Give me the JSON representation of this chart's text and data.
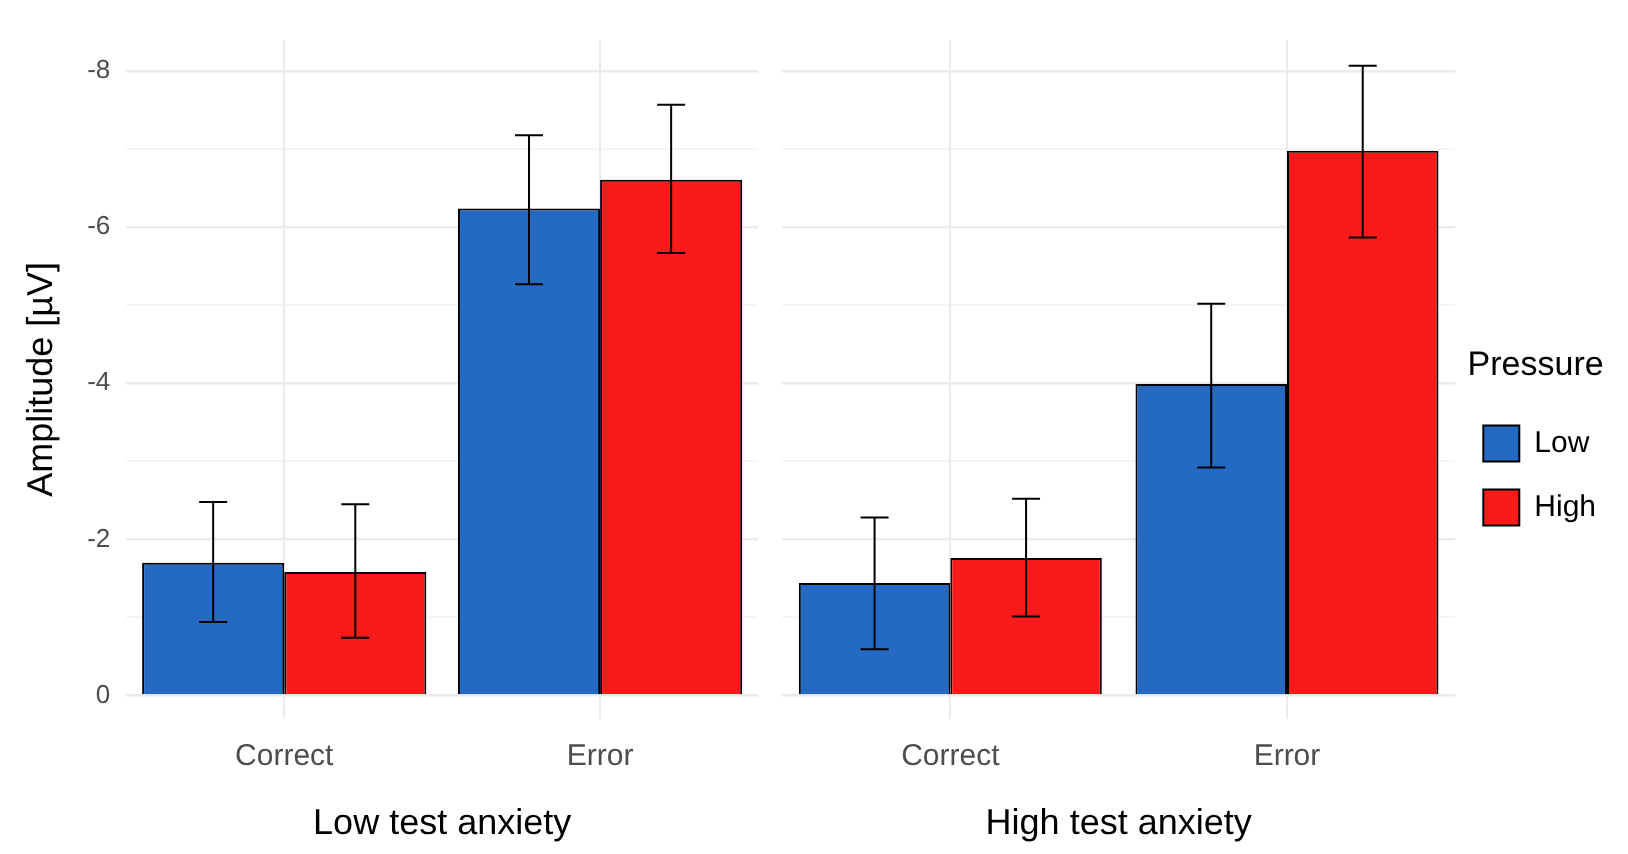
{
  "chart_data": [
    {
      "type": "bar",
      "xlabel": "Low test anxiety",
      "ylabel": "Amplitude [µV]",
      "categories": [
        "Correct",
        "Error"
      ],
      "series": [
        {
          "color": "#2469c2",
          "values": [
            -1.7,
            -6.24
          ],
          "errors": [
            [
              -2.48,
              -0.94
            ],
            [
              -7.18,
              -5.27
            ]
          ]
        },
        {
          "color": "#fb1a1a",
          "values": [
            -1.58,
            -6.61
          ],
          "errors": [
            [
              -2.45,
              -0.74
            ],
            [
              -7.57,
              -5.67
            ]
          ]
        }
      ],
      "ylim": [
        0.3,
        -8.4
      ],
      "yticks": [
        0,
        {
          "value": -1,
          "label": null
        },
        -2,
        {
          "value": -3,
          "label": null
        },
        -4,
        {
          "value": -5,
          "label": null
        },
        -6,
        {
          "value": -7,
          "label": null
        },
        -8
      ],
      "grid": true,
      "legend": false
    },
    {
      "type": "bar",
      "xlabel": "High test anxiety",
      "categories": [
        "Correct",
        "Error"
      ],
      "legend_title": "Pressure",
      "series": [
        {
          "name": "Low",
          "color": "#2469c2",
          "values": [
            -1.44,
            -3.99
          ],
          "errors": [
            [
              -2.28,
              -0.59
            ],
            [
              -5.02,
              -2.92
            ]
          ]
        },
        {
          "name": "High",
          "color": "#fb1a1a",
          "values": [
            -1.76,
            -6.98
          ],
          "errors": [
            [
              -2.52,
              -1.01
            ],
            [
              -8.07,
              -5.87
            ]
          ]
        }
      ],
      "ylim": [
        0.3,
        -8.4
      ],
      "yticks": [
        0,
        {
          "value": -1,
          "label": null
        },
        -2,
        {
          "value": -3,
          "label": null
        },
        -4,
        {
          "value": -5,
          "label": null
        },
        -6,
        {
          "value": -7,
          "label": null
        },
        -8
      ],
      "grid": true,
      "legend": "right",
      "tick_labels": "x"
    }
  ]
}
